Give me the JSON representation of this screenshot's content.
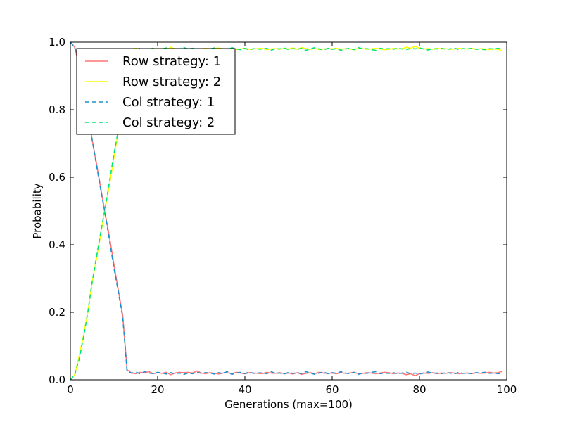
{
  "chart_data": {
    "type": "line",
    "title": "",
    "xlabel": "Generations (max=100)",
    "ylabel": "Probability",
    "xlim": [
      0,
      100
    ],
    "ylim": [
      0,
      1
    ],
    "xticks": [
      0,
      20,
      40,
      60,
      80,
      100
    ],
    "yticks": [
      0.0,
      0.2,
      0.4,
      0.6,
      0.8,
      1.0
    ],
    "legend": {
      "location": "upper-left"
    },
    "series": [
      {
        "name": "Row strategy: 1",
        "color": "#ff7777",
        "style": "solid",
        "x": [
          0,
          1,
          2,
          3,
          4,
          5,
          6,
          7,
          8,
          9,
          10,
          11,
          12,
          13,
          14,
          15,
          16,
          17,
          18,
          19,
          20,
          21,
          22,
          23,
          24,
          25,
          26,
          27,
          28,
          29,
          30,
          31,
          32,
          33,
          34,
          35,
          36,
          37,
          38,
          39,
          40,
          41,
          42,
          43,
          44,
          45,
          46,
          47,
          48,
          49,
          50,
          51,
          52,
          53,
          54,
          55,
          56,
          57,
          58,
          59,
          60,
          61,
          62,
          63,
          64,
          65,
          66,
          67,
          68,
          69,
          70,
          71,
          72,
          73,
          74,
          75,
          76,
          77,
          78,
          79,
          80,
          81,
          82,
          83,
          84,
          85,
          86,
          87,
          88,
          89,
          90,
          91,
          92,
          93,
          94,
          95,
          96,
          97,
          98,
          99
        ],
        "y": [
          1.0,
          0.985,
          0.93,
          0.87,
          0.8,
          0.71,
          0.64,
          0.565,
          0.49,
          0.42,
          0.34,
          0.265,
          0.19,
          0.03,
          0.02,
          0.018,
          0.022,
          0.02,
          0.024,
          0.018,
          0.021,
          0.019,
          0.022,
          0.015,
          0.02,
          0.022,
          0.021,
          0.022,
          0.02,
          0.026,
          0.02,
          0.018,
          0.021,
          0.019,
          0.017,
          0.02,
          0.021,
          0.018,
          0.022,
          0.02,
          0.018,
          0.021,
          0.02,
          0.019,
          0.018,
          0.022,
          0.02,
          0.019,
          0.021,
          0.018,
          0.02,
          0.017,
          0.021,
          0.016,
          0.019,
          0.021,
          0.018,
          0.022,
          0.02,
          0.019,
          0.02,
          0.018,
          0.021,
          0.019,
          0.02,
          0.022,
          0.018,
          0.019,
          0.021,
          0.02,
          0.018,
          0.02,
          0.022,
          0.021,
          0.018,
          0.02,
          0.019,
          0.015,
          0.018,
          0.012,
          0.018,
          0.02,
          0.019,
          0.021,
          0.018,
          0.02,
          0.019,
          0.021,
          0.02,
          0.018,
          0.019,
          0.02,
          0.018,
          0.021,
          0.019,
          0.02,
          0.022,
          0.02,
          0.021,
          0.025
        ]
      },
      {
        "name": "Row strategy: 2",
        "color": "#ffff00",
        "style": "solid",
        "x": [
          0,
          1,
          2,
          3,
          4,
          5,
          6,
          7,
          8,
          9,
          10,
          11,
          12,
          13,
          14,
          15,
          16,
          17,
          18,
          19,
          20,
          21,
          22,
          23,
          24,
          25,
          26,
          27,
          28,
          29,
          30,
          31,
          32,
          33,
          34,
          35,
          36,
          37,
          38,
          39,
          40,
          41,
          42,
          43,
          44,
          45,
          46,
          47,
          48,
          49,
          50,
          51,
          52,
          53,
          54,
          55,
          56,
          57,
          58,
          59,
          60,
          61,
          62,
          63,
          64,
          65,
          66,
          67,
          68,
          69,
          70,
          71,
          72,
          73,
          74,
          75,
          76,
          77,
          78,
          79,
          80,
          81,
          82,
          83,
          84,
          85,
          86,
          87,
          88,
          89,
          90,
          91,
          92,
          93,
          94,
          95,
          96,
          97,
          98,
          99
        ],
        "y": [
          0.0,
          0.015,
          0.07,
          0.13,
          0.2,
          0.29,
          0.36,
          0.435,
          0.51,
          0.58,
          0.66,
          0.735,
          0.81,
          0.97,
          0.98,
          0.982,
          0.978,
          0.98,
          0.976,
          0.982,
          0.979,
          0.981,
          0.978,
          0.985,
          0.98,
          0.978,
          0.979,
          0.978,
          0.98,
          0.974,
          0.98,
          0.982,
          0.979,
          0.981,
          0.983,
          0.98,
          0.979,
          0.982,
          0.978,
          0.98,
          0.982,
          0.979,
          0.98,
          0.981,
          0.982,
          0.978,
          0.98,
          0.981,
          0.979,
          0.982,
          0.98,
          0.983,
          0.979,
          0.984,
          0.981,
          0.979,
          0.982,
          0.978,
          0.98,
          0.981,
          0.98,
          0.982,
          0.979,
          0.981,
          0.98,
          0.978,
          0.982,
          0.981,
          0.979,
          0.98,
          0.982,
          0.98,
          0.978,
          0.979,
          0.982,
          0.98,
          0.981,
          0.985,
          0.982,
          0.988,
          0.982,
          0.98,
          0.981,
          0.979,
          0.982,
          0.98,
          0.981,
          0.979,
          0.98,
          0.982,
          0.981,
          0.98,
          0.982,
          0.979,
          0.981,
          0.98,
          0.978,
          0.98,
          0.979,
          0.975
        ]
      },
      {
        "name": "Col strategy: 1",
        "color": "#1f8fcf",
        "style": "dashed",
        "x": [
          0,
          1,
          2,
          3,
          4,
          5,
          6,
          7,
          8,
          9,
          10,
          11,
          12,
          13,
          14,
          15,
          16,
          17,
          18,
          19,
          20,
          21,
          22,
          23,
          24,
          25,
          26,
          27,
          28,
          29,
          30,
          31,
          32,
          33,
          34,
          35,
          36,
          37,
          38,
          39,
          40,
          41,
          42,
          43,
          44,
          45,
          46,
          47,
          48,
          49,
          50,
          51,
          52,
          53,
          54,
          55,
          56,
          57,
          58,
          59,
          60,
          61,
          62,
          63,
          64,
          65,
          66,
          67,
          68,
          69,
          70,
          71,
          72,
          73,
          74,
          75,
          76,
          77,
          78,
          79,
          80,
          81,
          82,
          83,
          84,
          85,
          86,
          87,
          88,
          89,
          90,
          91,
          92,
          93,
          94,
          95,
          96,
          97,
          98,
          99
        ],
        "y": [
          1.0,
          0.985,
          0.94,
          0.875,
          0.8,
          0.71,
          0.635,
          0.56,
          0.49,
          0.41,
          0.33,
          0.26,
          0.185,
          0.025,
          0.02,
          0.022,
          0.018,
          0.024,
          0.02,
          0.018,
          0.022,
          0.02,
          0.017,
          0.021,
          0.018,
          0.02,
          0.016,
          0.02,
          0.018,
          0.022,
          0.019,
          0.021,
          0.02,
          0.017,
          0.021,
          0.018,
          0.025,
          0.016,
          0.02,
          0.022,
          0.018,
          0.023,
          0.019,
          0.02,
          0.021,
          0.018,
          0.024,
          0.019,
          0.02,
          0.017,
          0.022,
          0.019,
          0.021,
          0.018,
          0.024,
          0.02,
          0.016,
          0.02,
          0.023,
          0.018,
          0.021,
          0.019,
          0.024,
          0.02,
          0.018,
          0.022,
          0.016,
          0.02,
          0.019,
          0.022,
          0.024,
          0.018,
          0.02,
          0.019,
          0.021,
          0.017,
          0.02,
          0.022,
          0.018,
          0.02,
          0.017,
          0.02,
          0.023,
          0.019,
          0.02,
          0.018,
          0.021,
          0.02,
          0.017,
          0.022,
          0.019,
          0.02,
          0.018,
          0.021,
          0.02,
          0.022,
          0.019,
          0.02,
          0.018,
          0.02
        ]
      },
      {
        "name": "Col strategy: 2",
        "color": "#00e676",
        "style": "dashed",
        "x": [
          0,
          1,
          2,
          3,
          4,
          5,
          6,
          7,
          8,
          9,
          10,
          11,
          12,
          13,
          14,
          15,
          16,
          17,
          18,
          19,
          20,
          21,
          22,
          23,
          24,
          25,
          26,
          27,
          28,
          29,
          30,
          31,
          32,
          33,
          34,
          35,
          36,
          37,
          38,
          39,
          40,
          41,
          42,
          43,
          44,
          45,
          46,
          47,
          48,
          49,
          50,
          51,
          52,
          53,
          54,
          55,
          56,
          57,
          58,
          59,
          60,
          61,
          62,
          63,
          64,
          65,
          66,
          67,
          68,
          69,
          70,
          71,
          72,
          73,
          74,
          75,
          76,
          77,
          78,
          79,
          80,
          81,
          82,
          83,
          84,
          85,
          86,
          87,
          88,
          89,
          90,
          91,
          92,
          93,
          94,
          95,
          96,
          97,
          98,
          99
        ],
        "y": [
          0.0,
          0.015,
          0.06,
          0.125,
          0.2,
          0.29,
          0.365,
          0.44,
          0.51,
          0.59,
          0.67,
          0.74,
          0.815,
          0.975,
          0.98,
          0.978,
          0.982,
          0.976,
          0.98,
          0.982,
          0.978,
          0.98,
          0.983,
          0.979,
          0.982,
          0.98,
          0.984,
          0.98,
          0.982,
          0.978,
          0.981,
          0.979,
          0.98,
          0.983,
          0.979,
          0.982,
          0.975,
          0.984,
          0.98,
          0.978,
          0.982,
          0.977,
          0.981,
          0.98,
          0.979,
          0.982,
          0.976,
          0.981,
          0.98,
          0.983,
          0.978,
          0.981,
          0.979,
          0.982,
          0.976,
          0.98,
          0.984,
          0.98,
          0.977,
          0.982,
          0.979,
          0.981,
          0.976,
          0.98,
          0.982,
          0.978,
          0.984,
          0.98,
          0.981,
          0.978,
          0.976,
          0.982,
          0.98,
          0.981,
          0.979,
          0.983,
          0.98,
          0.978,
          0.982,
          0.98,
          0.983,
          0.98,
          0.977,
          0.981,
          0.98,
          0.982,
          0.979,
          0.98,
          0.983,
          0.978,
          0.981,
          0.98,
          0.982,
          0.979,
          0.98,
          0.978,
          0.981,
          0.98,
          0.982,
          0.98
        ]
      }
    ]
  }
}
